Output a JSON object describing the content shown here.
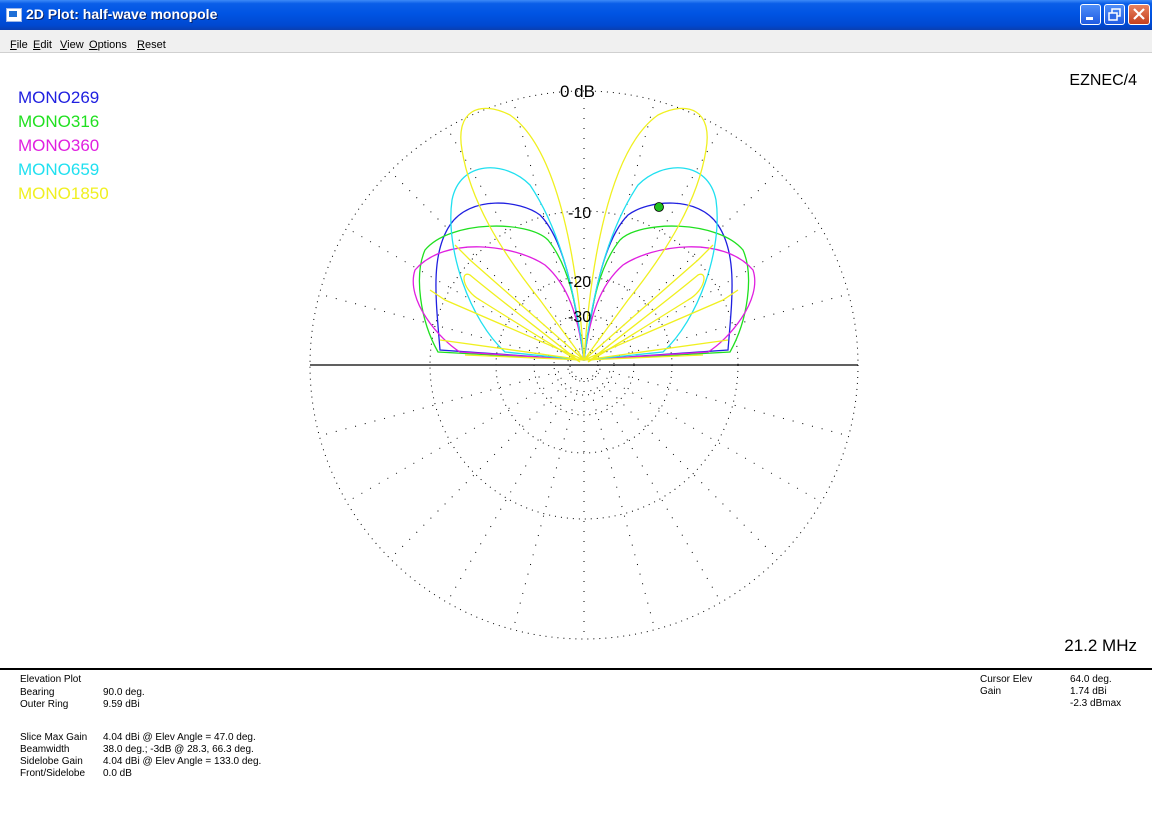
{
  "window": {
    "title": "2D Plot: half-wave monopole",
    "controls": [
      "minimize-icon",
      "restore-icon",
      "close-icon"
    ]
  },
  "menu": [
    {
      "label": "File",
      "u": "F",
      "rest": "ile"
    },
    {
      "label": "Edit",
      "u": "E",
      "rest": "dit"
    },
    {
      "label": "View",
      "u": "V",
      "rest": "iew"
    },
    {
      "label": "Options",
      "u": "O",
      "rest": "ptions"
    },
    {
      "label": "Reset",
      "u": "R",
      "rest": "eset"
    }
  ],
  "plot": {
    "brand": "EZNEC/4",
    "frequency": "21.2 MHz",
    "ring_labels": [
      "0 dB",
      "-10",
      "-20",
      "-30"
    ],
    "legend": [
      {
        "name": "MONO269",
        "color": "#2020e0"
      },
      {
        "name": "MONO316",
        "color": "#20e020"
      },
      {
        "name": "MONO360",
        "color": "#e020e0"
      },
      {
        "name": "MONO659",
        "color": "#20e0f0"
      },
      {
        "name": "MONO1850",
        "color": "#f0f020"
      }
    ],
    "cursor_marker_color": "#20c020"
  },
  "info": {
    "plot_type": "Elevation Plot",
    "left_rows": [
      {
        "label": "Bearing",
        "value": "90.0 deg."
      },
      {
        "label": "Outer Ring",
        "value": "9.59 dBi"
      }
    ],
    "stats_rows": [
      {
        "label": "Slice Max Gain",
        "value": "4.04 dBi @ Elev Angle = 47.0 deg."
      },
      {
        "label": "Beamwidth",
        "value": "38.0 deg.; -3dB @ 28.3, 66.3 deg."
      },
      {
        "label": "Sidelobe Gain",
        "value": "4.04 dBi @ Elev Angle = 133.0 deg."
      },
      {
        "label": "Front/Sidelobe",
        "value": "0.0 dB"
      }
    ],
    "cursor": {
      "elev_label": "Cursor Elev",
      "elev_value": "64.0 deg.",
      "gain_label": "Gain",
      "gain_value": "1.74 dBi",
      "gain_rel": "-2.3 dBmax"
    }
  }
}
